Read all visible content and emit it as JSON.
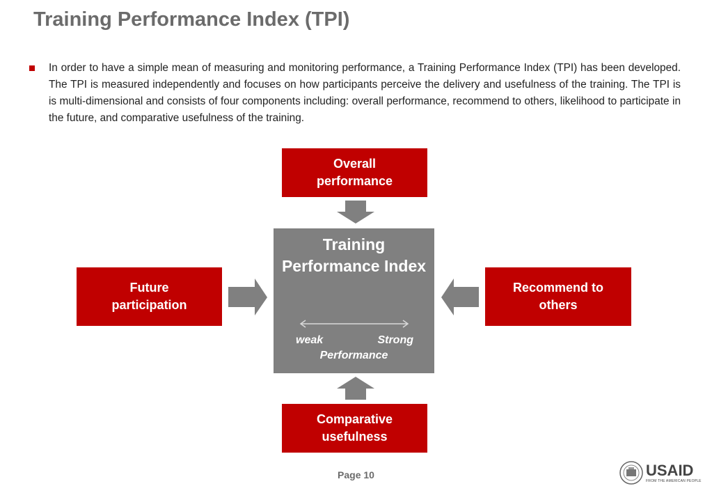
{
  "title": "Training Performance Index (TPI)",
  "bullet": "In order to have a simple mean of measuring and monitoring performance, a Training Performance Index (TPI) has been developed. The TPI is measured independently and focuses on how participants perceive the delivery and usefulness of the training. The TPI is is multi-dimensional and consists of four components including: overall performance, recommend to others, likelihood to participate in the future, and comparative usefulness of the training.",
  "diagram": {
    "center_title": "Training Performance Index",
    "scale_low": "weak",
    "scale_high": "Strong",
    "scale_label": "Performance",
    "top": "Overall performance",
    "left": "Future participation",
    "right": "Recommend to others",
    "bottom": "Comparative usefulness"
  },
  "footer": {
    "page": "Page 10",
    "logo_text": "USAID",
    "logo_sub": "FROM THE AMERICAN PEOPLE"
  },
  "colors": {
    "box": "#c00000",
    "center": "#808080",
    "arrow": "#808080",
    "title": "#6b6b6b"
  }
}
